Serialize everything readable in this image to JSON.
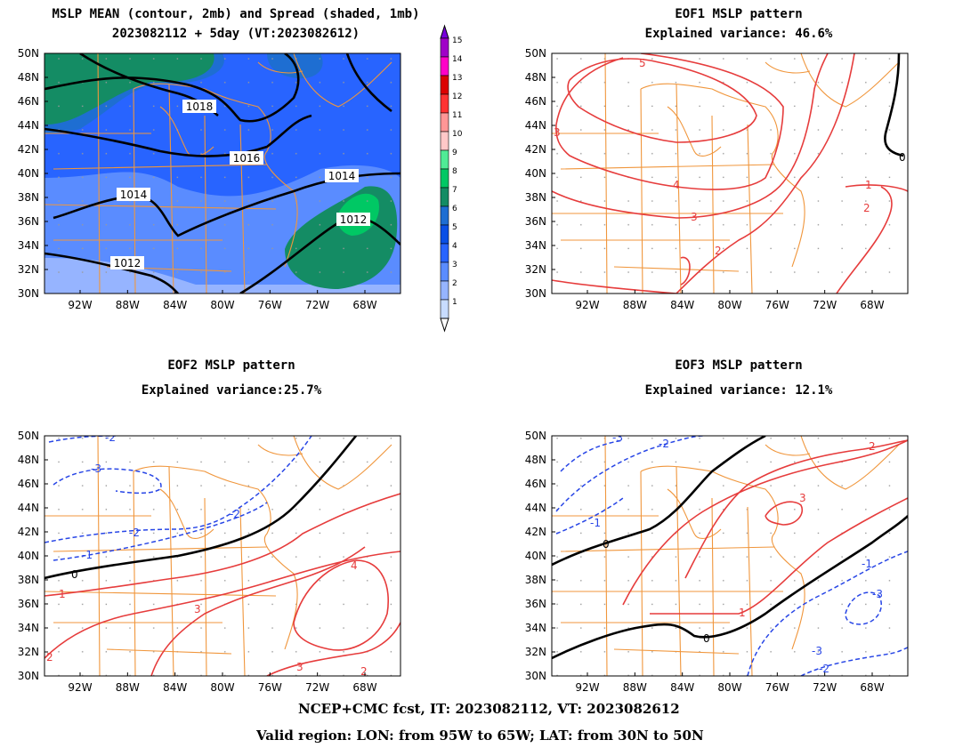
{
  "panels": [
    {
      "id": "mean-spread",
      "title_lines": [
        "MSLP MEAN (contour, 2mb) and Spread (shaded, 1mb)",
        "2023082112 + 5day (VT:2023082612)"
      ],
      "contour_labels": [
        "1018",
        "1016",
        "1014",
        "1014",
        "1012",
        "1012"
      ]
    },
    {
      "id": "eof1",
      "title_lines": [
        "EOF1 MSLP pattern",
        "Explained variance: 46.6%"
      ],
      "contour_labels": [
        "5",
        "4",
        "3",
        "2",
        "2",
        "1",
        "3",
        "0"
      ]
    },
    {
      "id": "eof2",
      "title_lines": [
        "EOF2 MSLP pattern",
        "Explained variance:25.7%"
      ],
      "contour_labels": [
        "-2",
        "-3",
        "-2",
        "-1",
        "0",
        "1",
        "4",
        "3",
        "3",
        "-2",
        "2",
        "2"
      ]
    },
    {
      "id": "eof3",
      "title_lines": [
        "EOF3 MSLP pattern",
        "Explained variance: 12.1%"
      ],
      "contour_labels": [
        "-3",
        "-2",
        "-1",
        "0",
        "2",
        "3",
        "1",
        "0",
        "-1",
        "-3",
        "-3",
        "-2"
      ]
    }
  ],
  "axes": {
    "lat_labels": [
      "50N",
      "48N",
      "46N",
      "44N",
      "42N",
      "40N",
      "38N",
      "36N",
      "34N",
      "32N",
      "30N"
    ],
    "lon_labels": [
      "92W",
      "88W",
      "84W",
      "80W",
      "76W",
      "72W",
      "68W"
    ]
  },
  "colorbar": {
    "labels": [
      "15",
      "14",
      "13",
      "12",
      "11",
      "10",
      "9",
      "8",
      "7",
      "6",
      "5",
      "4",
      "3",
      "2",
      "1"
    ],
    "colors": [
      "#a000c8",
      "#ff00c8",
      "#dc0000",
      "#ff3232",
      "#ff9696",
      "#ffc8c8",
      "#50eb96",
      "#00c864",
      "#148c64",
      "#1e6ed2",
      "#0a50e6",
      "#2864ff",
      "#5a8cff",
      "#96b4ff",
      "#c8dcff"
    ]
  },
  "map_colors": {
    "state_lines": "#f0963c",
    "positive_contour": "#e63c3c",
    "negative_contour": "#2846e6",
    "zero_contour": "#000000"
  },
  "footer": {
    "line1": "NCEP+CMC fcst, IT: 2023082112, VT: 2023082612",
    "line2": "Valid region: LON: from 95W to 65W; LAT: from 30N to 50N"
  }
}
